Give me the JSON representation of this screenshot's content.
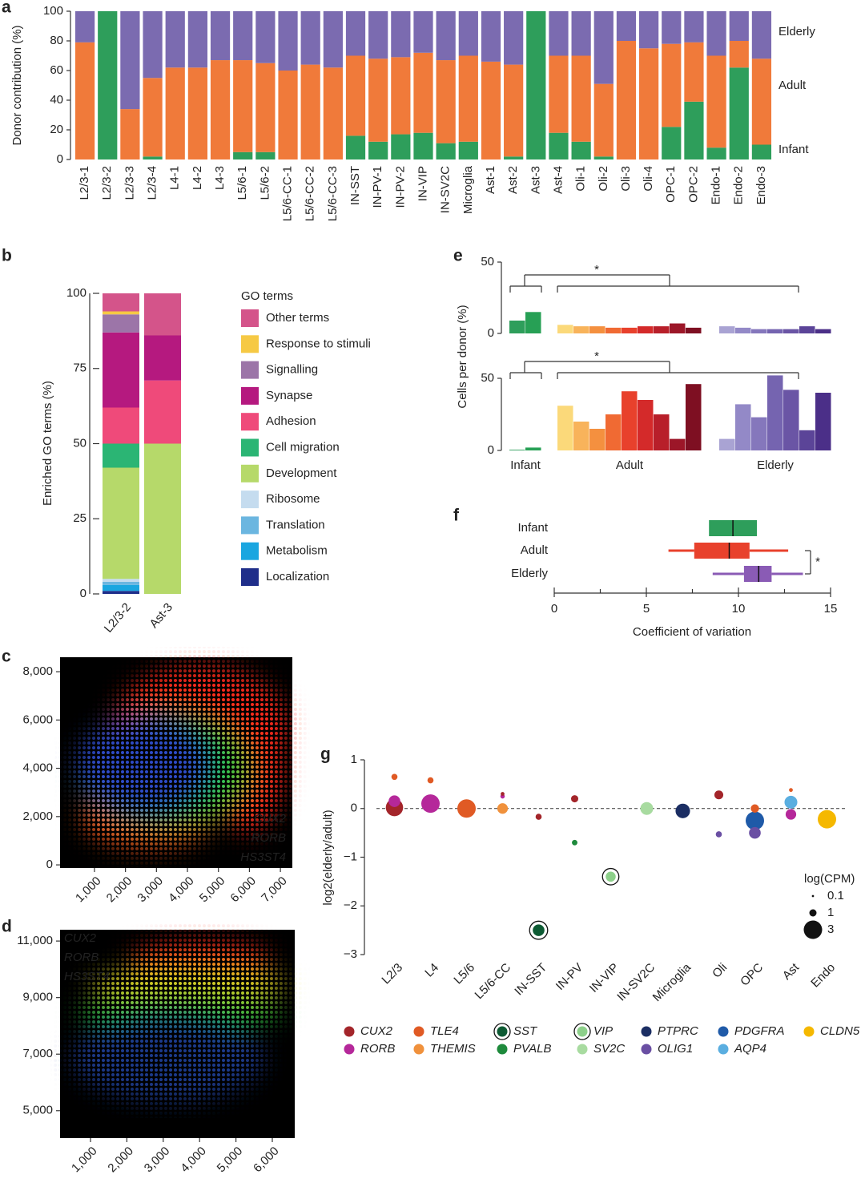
{
  "chart_data": [
    {
      "panel": "a",
      "type": "bar",
      "stacked": true,
      "y_label": "Donor contribution (%)",
      "categories": [
        "L2/3-1",
        "L2/3-2",
        "L2/3-3",
        "L2/3-4",
        "L4-1",
        "L4-2",
        "L4-3",
        "L5/6-1",
        "L5/6-2",
        "L5/6-CC-1",
        "L5/6-CC-2",
        "L5/6-CC-3",
        "IN-SST",
        "IN-PV-1",
        "IN-PV-2",
        "IN-VIP",
        "IN-SV2C",
        "Microglia",
        "Ast-1",
        "Ast-2",
        "Ast-3",
        "Ast-4",
        "Oli-1",
        "Oli-2",
        "Oli-3",
        "Oli-4",
        "OPC-1",
        "OPC-2",
        "Endo-1",
        "Endo-2",
        "Endo-3"
      ],
      "category_colors": [
        "#a3252a",
        "#c8332e",
        "#d9544a",
        "#e07b50",
        "#c03a9a",
        "#c94fa6",
        "#d268b2",
        "#d9442b",
        "#e0603a",
        "#f0913c",
        "#f3a865",
        "#f6c79a",
        "#0d5a33",
        "#2a9a48",
        "#3aa852",
        "#4ab55a",
        "#9ad69a",
        "#3b3f8f",
        "#1f6fa8",
        "#2e86c0",
        "#4aa0d0",
        "#8fcbe8",
        "#5b4a9a",
        "#7a6ab0",
        "#9a8cc8",
        "#c0b5dd",
        "#1a8ab0",
        "#1f9abd",
        "#c9a000",
        "#e8b800",
        "#f0c000"
      ],
      "series": [
        {
          "name": "Infant",
          "color": "#2e9e5b",
          "values": [
            0,
            100,
            0,
            2,
            0,
            0,
            0,
            5,
            5,
            0,
            0,
            0,
            16,
            12,
            17,
            18,
            11,
            12,
            0,
            2,
            100,
            18,
            12,
            2,
            0,
            0,
            22,
            39,
            8,
            62,
            10
          ]
        },
        {
          "name": "Adult",
          "color": "#f07a3a",
          "values": [
            79,
            0,
            34,
            53,
            62,
            62,
            67,
            62,
            60,
            60,
            64,
            62,
            54,
            56,
            52,
            54,
            56,
            58,
            66,
            62,
            0,
            52,
            58,
            49,
            80,
            75,
            56,
            40,
            62,
            18,
            58
          ]
        },
        {
          "name": "Elderly",
          "color": "#7b6bb0",
          "values": [
            21,
            0,
            66,
            45,
            38,
            38,
            33,
            33,
            35,
            40,
            36,
            38,
            30,
            32,
            31,
            28,
            33,
            30,
            34,
            36,
            0,
            30,
            30,
            49,
            20,
            25,
            22,
            21,
            30,
            20,
            32
          ]
        }
      ],
      "ylim": [
        0,
        100
      ],
      "yticks": [
        0,
        20,
        40,
        60,
        80,
        100
      ]
    },
    {
      "panel": "b",
      "type": "bar",
      "stacked": true,
      "y_label": "Enriched GO terms (%)",
      "legend_title": "GO terms",
      "categories": [
        "L2/3-2",
        "Ast-3"
      ],
      "series": [
        {
          "name": "Localization",
          "color": "#1f2e8a",
          "values": [
            1,
            0
          ]
        },
        {
          "name": "Metabolism",
          "color": "#1aa6e0",
          "values": [
            2,
            0
          ]
        },
        {
          "name": "Translation",
          "color": "#6bb6e0",
          "values": [
            1,
            0
          ]
        },
        {
          "name": "Ribosome",
          "color": "#c5dcef",
          "values": [
            1,
            0
          ]
        },
        {
          "name": "Development",
          "color": "#b6d96a",
          "values": [
            37,
            50
          ]
        },
        {
          "name": "Cell migration",
          "color": "#2bb574",
          "values": [
            8,
            0
          ]
        },
        {
          "name": "Adhesion",
          "color": "#ef4a7a",
          "values": [
            12,
            21
          ]
        },
        {
          "name": "Synapse",
          "color": "#b5197f",
          "values": [
            25,
            15
          ]
        },
        {
          "name": "Signalling",
          "color": "#9c75a8",
          "values": [
            6,
            0
          ]
        },
        {
          "name": "Response to stimuli",
          "color": "#f6c944",
          "values": [
            1,
            0
          ]
        },
        {
          "name": "Other terms",
          "color": "#d4548a",
          "values": [
            6,
            14
          ]
        }
      ],
      "ylim": [
        0,
        100
      ],
      "yticks": [
        0,
        25,
        50,
        75,
        100
      ]
    },
    {
      "panel": "e",
      "type": "grouped_bar",
      "y_label": "Cells per donor (%)",
      "groups": [
        "Infant",
        "Adult",
        "Elderly"
      ],
      "colors": [
        [
          "#2e9e5b",
          "#27a055"
        ],
        [
          "#fbd97a",
          "#f8b35b",
          "#f4903f",
          "#f06a33",
          "#e8412c",
          "#d42a2a",
          "#b81f2a",
          "#9c1628",
          "#7e0f22"
        ],
        [
          "#a9a3d3",
          "#9389c7",
          "#8577bc",
          "#7564b0",
          "#6a55a5",
          "#5b4498",
          "#4b2f88"
        ]
      ],
      "panels": [
        {
          "ylim": [
            0,
            50
          ],
          "yticks": [
            0,
            50
          ],
          "values": [
            [
              9,
              15
            ],
            [
              6,
              5,
              5,
              4,
              4,
              5,
              5,
              7,
              4
            ],
            [
              5,
              4,
              3,
              3,
              3,
              5,
              3
            ]
          ]
        },
        {
          "ylim": [
            0,
            50
          ],
          "yticks": [
            0,
            50
          ],
          "values": [
            [
              0.5,
              2
            ],
            [
              31,
              20,
              15,
              25,
              41,
              35,
              25,
              8,
              46
            ],
            [
              8,
              32,
              23,
              52,
              42,
              14,
              40
            ]
          ]
        }
      ],
      "annotations": [
        "*",
        "*"
      ]
    },
    {
      "panel": "f",
      "type": "box",
      "orientation": "horizontal",
      "x_label": "Coefficient of variation",
      "categories": [
        "Infant",
        "Adult",
        "Elderly"
      ],
      "colors": [
        "#2e9e5b",
        "#e8412c",
        "#8a5bb5"
      ],
      "boxes": [
        {
          "min": 8.4,
          "q1": 8.4,
          "median": 9.7,
          "q3": 11,
          "max": 11
        },
        {
          "min": 6.2,
          "q1": 7.6,
          "median": 9.5,
          "q3": 10.6,
          "max": 12.7
        },
        {
          "min": 8.6,
          "q1": 10.3,
          "median": 11.1,
          "q3": 11.8,
          "max": 13.5
        }
      ],
      "xlim": [
        0,
        15
      ],
      "xticks": [
        0,
        5,
        10,
        15
      ],
      "xminorticks": [
        2.5,
        7.5,
        12.5
      ],
      "annotations": [
        "*"
      ]
    },
    {
      "panel": "c",
      "type": "image",
      "xlim": [
        -110,
        7385
      ],
      "xticks": [
        {
          "value": 1000,
          "label": "1,000"
        },
        {
          "value": 2000,
          "label": "2,000"
        },
        {
          "value": 3000,
          "label": "3,000"
        },
        {
          "value": 4000,
          "label": "4,000"
        },
        {
          "value": 5000,
          "label": "5,000"
        },
        {
          "value": 6000,
          "label": "6,000"
        },
        {
          "value": 7000,
          "label": "7,000"
        }
      ],
      "ylim": [
        -130,
        8600
      ],
      "yticks": [
        0,
        {
          "value": 2000,
          "label": "2,000"
        },
        {
          "value": 4000,
          "label": "4,000"
        },
        {
          "value": 6000,
          "label": "6,000"
        },
        {
          "value": 8000,
          "label": "8,000"
        }
      ],
      "legend": [
        {
          "name": "CUX2",
          "color": "#ff2a1a"
        },
        {
          "name": "RORB",
          "color": "#2fc43a"
        },
        {
          "name": "HS3ST4",
          "color": "#3a6cff"
        }
      ]
    },
    {
      "panel": "d",
      "type": "image",
      "xlim": [
        163,
        6617
      ],
      "xticks": [
        {
          "value": 1000,
          "label": "1,000"
        },
        {
          "value": 2000,
          "label": "2,000"
        },
        {
          "value": 3000,
          "label": "3,000"
        },
        {
          "value": 4000,
          "label": "4,000"
        },
        {
          "value": 5000,
          "label": "5,000"
        },
        {
          "value": 6000,
          "label": "6,000"
        }
      ],
      "ylim": [
        4030,
        11400
      ],
      "yticks": [
        {
          "value": 5000,
          "label": "5,000"
        },
        {
          "value": 7000,
          "label": "7,000"
        },
        {
          "value": 9000,
          "label": "9,000"
        },
        {
          "value": 11000,
          "label": "11,000"
        }
      ],
      "legend": [
        {
          "name": "CUX2",
          "color": "#ff2a1a"
        },
        {
          "name": "RORB",
          "color": "#2fc43a"
        },
        {
          "name": "HS3ST4",
          "color": "#3a6cff"
        }
      ]
    },
    {
      "panel": "g",
      "type": "scatter",
      "y_label": "log2(elderly/adult)",
      "categories": [
        "L2/3",
        "L4",
        "L5/6",
        "L5/6-CC",
        "IN-SST",
        "IN-PV",
        "IN-VIP",
        "IN-SV2C",
        "Microglia",
        "Oli",
        "OPC",
        "Ast",
        "Endo"
      ],
      "ylim": [
        -3,
        1
      ],
      "yticks": [
        {
          "value": -3,
          "label": "−3"
        },
        {
          "value": -2,
          "label": "−2"
        },
        {
          "value": -1,
          "label": "−1"
        },
        0,
        1
      ],
      "series": [
        {
          "name": "CUX2",
          "color": "#a3252a",
          "values": [
            0.02,
            null,
            null,
            0.3,
            -0.17,
            0.2,
            null,
            null,
            null,
            0.28,
            null,
            null,
            null
          ],
          "sizes": [
            2.8,
            null,
            null,
            0.4,
            0.8,
            1,
            null,
            null,
            null,
            1.3,
            null,
            null,
            null
          ]
        },
        {
          "name": "RORB",
          "color": "#b5289a",
          "values": [
            0.15,
            0.1,
            null,
            0.25,
            null,
            null,
            null,
            null,
            null,
            null,
            null,
            -0.12,
            null
          ],
          "sizes": [
            1.8,
            3,
            null,
            0.5,
            null,
            null,
            null,
            null,
            null,
            null,
            null,
            1.6,
            null
          ]
        },
        {
          "name": "TLE4",
          "color": "#e05a24",
          "values": [
            0.65,
            0.58,
            0,
            null,
            null,
            null,
            null,
            null,
            null,
            null,
            0,
            0.38,
            null
          ],
          "sizes": [
            0.8,
            0.8,
            3,
            null,
            null,
            null,
            null,
            null,
            null,
            null,
            1.2,
            0.4,
            null
          ]
        },
        {
          "name": "THEMIS",
          "color": "#f0913c",
          "values": [
            null,
            null,
            null,
            0,
            null,
            null,
            null,
            null,
            null,
            null,
            null,
            null,
            null
          ],
          "sizes": [
            null,
            null,
            null,
            1.6,
            null,
            null,
            null,
            null,
            null,
            null,
            null,
            null,
            null
          ]
        },
        {
          "name": "SST",
          "color": "#0d5a33",
          "ring": true,
          "values": [
            null,
            null,
            null,
            null,
            -2.5,
            null,
            null,
            null,
            null,
            null,
            null,
            null,
            null
          ],
          "sizes": [
            null,
            null,
            null,
            null,
            1.8,
            null,
            null,
            null,
            null,
            null,
            null,
            null,
            null
          ]
        },
        {
          "name": "PVALB",
          "color": "#1e8a3c",
          "values": [
            null,
            null,
            null,
            null,
            null,
            -0.7,
            null,
            null,
            null,
            null,
            null,
            null,
            null
          ],
          "sizes": [
            null,
            null,
            null,
            null,
            null,
            0.7,
            null,
            null,
            null,
            null,
            null,
            null,
            null
          ]
        },
        {
          "name": "VIP",
          "color": "#8dd08a",
          "ring": true,
          "values": [
            null,
            null,
            null,
            null,
            null,
            null,
            -1.4,
            null,
            null,
            null,
            null,
            null,
            null
          ],
          "sizes": [
            null,
            null,
            null,
            null,
            null,
            null,
            1.5,
            null,
            null,
            null,
            null,
            null,
            null
          ]
        },
        {
          "name": "SV2C",
          "color": "#a8dba0",
          "values": [
            null,
            null,
            null,
            null,
            null,
            null,
            null,
            0,
            null,
            null,
            null,
            null,
            null
          ],
          "sizes": [
            null,
            null,
            null,
            null,
            null,
            null,
            null,
            2,
            null,
            null,
            null,
            null,
            null
          ]
        },
        {
          "name": "PTPRC",
          "color": "#1b2e63",
          "values": [
            null,
            null,
            null,
            null,
            null,
            null,
            null,
            null,
            -0.05,
            null,
            null,
            null,
            null
          ],
          "sizes": [
            null,
            null,
            null,
            null,
            null,
            null,
            null,
            null,
            2.3,
            null,
            null,
            null,
            null
          ]
        },
        {
          "name": "OLIG1",
          "color": "#6a4fa3",
          "values": [
            null,
            null,
            null,
            null,
            null,
            null,
            null,
            null,
            null,
            -0.53,
            -0.5,
            null,
            null
          ],
          "sizes": [
            null,
            null,
            null,
            null,
            null,
            null,
            null,
            null,
            null,
            0.8,
            1.8,
            null,
            null
          ]
        },
        {
          "name": "PDGFRA",
          "color": "#1f5aa8",
          "values": [
            null,
            null,
            null,
            null,
            null,
            null,
            null,
            null,
            null,
            null,
            -0.25,
            null,
            null
          ],
          "sizes": [
            null,
            null,
            null,
            null,
            null,
            null,
            null,
            null,
            null,
            null,
            3,
            null,
            null
          ]
        },
        {
          "name": "AQP4",
          "color": "#5aaee0",
          "values": [
            null,
            null,
            null,
            null,
            null,
            null,
            null,
            null,
            null,
            null,
            null,
            0.13,
            null
          ],
          "sizes": [
            null,
            null,
            null,
            null,
            null,
            null,
            null,
            null,
            null,
            null,
            null,
            2,
            null
          ]
        },
        {
          "name": "CLDN5",
          "color": "#f5b800",
          "values": [
            null,
            null,
            null,
            null,
            null,
            null,
            null,
            null,
            null,
            null,
            null,
            null,
            -0.22
          ],
          "sizes": [
            null,
            null,
            null,
            null,
            null,
            null,
            null,
            null,
            null,
            null,
            null,
            null,
            3
          ]
        }
      ],
      "size_legend": {
        "title": "log(CPM)",
        "values": [
          0.1,
          1,
          3
        ]
      }
    }
  ]
}
